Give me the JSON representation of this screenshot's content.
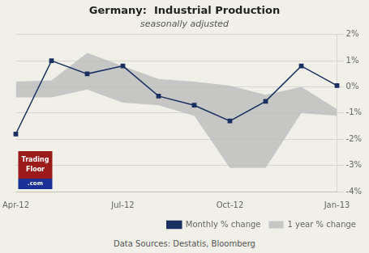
{
  "chart_data": {
    "type": "line",
    "title": "Germany:  Industrial Production",
    "subtitle": "seasonally adjusted",
    "source": "Data Sources: Destatis, Bloomberg",
    "annotations": [
      "Trading",
      "Floor",
      ".com"
    ],
    "categories": [
      "Apr-12",
      null,
      null,
      "Jul-12",
      null,
      null,
      "Oct-12",
      null,
      null,
      "Jan-13"
    ],
    "series": [
      {
        "name": "1 year % change",
        "type": "area",
        "color": "#b8b8b8",
        "lower": [
          -0.4,
          -0.4,
          -0.1,
          -0.6,
          -0.7,
          -1.1,
          -3.1,
          -3.1,
          -1.0,
          -1.1
        ],
        "upper": [
          0.2,
          0.25,
          1.3,
          0.8,
          0.3,
          0.2,
          0.05,
          -0.3,
          0.0,
          -0.85
        ]
      },
      {
        "name": "Monthly % change",
        "type": "line",
        "color": "#1a3060",
        "marker": "square",
        "values": [
          -1.8,
          1.0,
          0.5,
          0.8,
          -0.35,
          -0.7,
          -1.3,
          -0.55,
          0.8,
          0.05
        ]
      }
    ],
    "ylim": [
      -4,
      2
    ],
    "yticks": [
      {
        "value": -4,
        "label": "-4%"
      },
      {
        "value": -3,
        "label": "-3%"
      },
      {
        "value": -2,
        "label": "-2%"
      },
      {
        "value": -1,
        "label": "-1%"
      },
      {
        "value": 0,
        "label": "0%"
      },
      {
        "value": 1,
        "label": "1%"
      },
      {
        "value": 2,
        "label": "2%"
      }
    ],
    "grid": true,
    "legend": "lower right"
  }
}
